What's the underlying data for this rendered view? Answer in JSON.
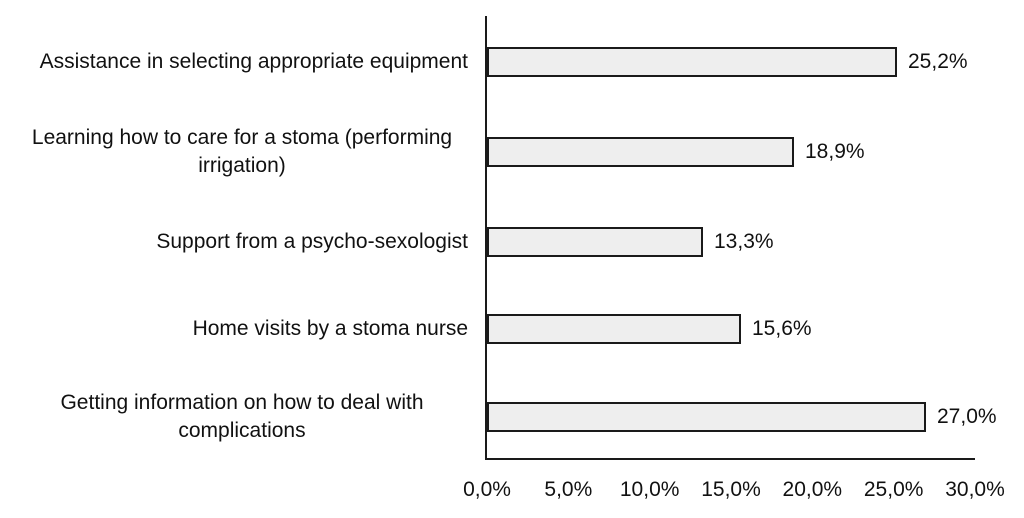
{
  "chart_data": {
    "type": "bar",
    "orientation": "horizontal",
    "title": "",
    "xlabel": "",
    "ylabel": "",
    "grid": false,
    "legend": false,
    "xlim": [
      0,
      30
    ],
    "categories": [
      "Assistance in selecting appropriate equipment",
      "Learning how to care for a stoma (performing irrigation)",
      "Support from a psycho-sexologist",
      "Home visits by a stoma nurse",
      "Getting information on how to deal with complications"
    ],
    "values": [
      25.2,
      18.9,
      13.3,
      15.6,
      27.0
    ],
    "data_labels": [
      "25,2%",
      "18,9%",
      "13,3%",
      "15,6%",
      "27,0%"
    ],
    "x_tick_values": [
      0,
      5,
      10,
      15,
      20,
      25,
      30
    ],
    "x_tick_labels": [
      "0,0%",
      "5,0%",
      "10,0%",
      "15,0%",
      "20,0%",
      "25,0%",
      "30,0%"
    ],
    "colors": {
      "bar_fill": "#eeeeee",
      "bar_border": "#1a1a1a",
      "axis": "#1a1a1a",
      "text": "#111111",
      "background": "#ffffff"
    }
  }
}
